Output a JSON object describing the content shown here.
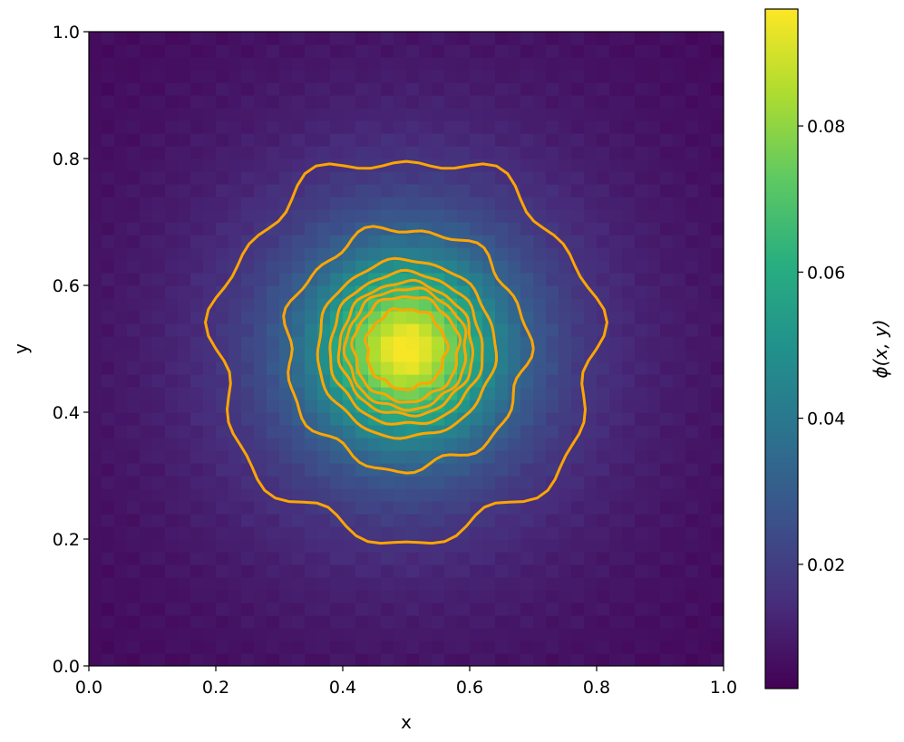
{
  "chart_data": {
    "type": "heatmap",
    "title": "",
    "xlabel": "x",
    "ylabel": "y",
    "xlim": [
      0.0,
      1.0
    ],
    "ylim": [
      0.0,
      1.0
    ],
    "x_ticks": [
      "0.0",
      "0.2",
      "0.4",
      "0.6",
      "0.8",
      "1.0"
    ],
    "y_ticks": [
      "0.0",
      "0.2",
      "0.4",
      "0.6",
      "0.8",
      "1.0"
    ],
    "colormap": "viridis",
    "colorbar": {
      "label": "ϕ(x, y)",
      "range": [
        0.003,
        0.096
      ],
      "ticks": [
        "0.02",
        "0.04",
        "0.06",
        "0.08"
      ],
      "tick_values": [
        0.02,
        0.04,
        0.06,
        0.08
      ]
    },
    "field": {
      "peak_center": [
        0.5,
        0.5
      ],
      "peak_value": 0.096,
      "background_value": 0.003
    },
    "contour_color": "#ffa500",
    "contours": [
      {
        "center": [
          0.5,
          0.5
        ],
        "radius": 0.3
      },
      {
        "center": [
          0.5,
          0.5
        ],
        "radius": 0.19
      },
      {
        "center": [
          0.5,
          0.5
        ],
        "radius": 0.14
      },
      {
        "center": [
          0.5,
          0.5
        ],
        "radius": 0.12
      },
      {
        "center": [
          0.5,
          0.5
        ],
        "radius": 0.105
      },
      {
        "center": [
          0.5,
          0.5
        ],
        "radius": 0.095
      },
      {
        "center": [
          0.5,
          0.5
        ],
        "radius": 0.083
      },
      {
        "center": [
          0.5,
          0.5
        ],
        "radius": 0.063
      }
    ]
  }
}
